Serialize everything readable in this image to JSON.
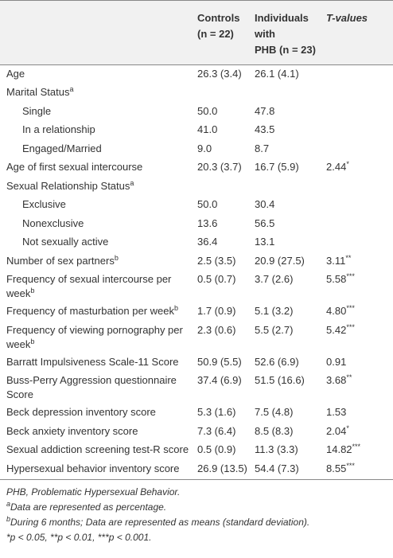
{
  "table": {
    "header": {
      "controls": [
        "Controls",
        "(n = 22)"
      ],
      "phb": [
        "Individuals with",
        "PHB (n = 23)"
      ],
      "t": "T-values"
    },
    "rows": [
      {
        "label": "Age",
        "controls": "26.3 (3.4)",
        "phb": "26.1 (4.1)"
      },
      {
        "label": "Marital Status",
        "label_sup": "a"
      },
      {
        "label": "Single",
        "indent": true,
        "controls": "50.0",
        "phb": "47.8"
      },
      {
        "label": "In a relationship",
        "indent": true,
        "controls": "41.0",
        "phb": "43.5"
      },
      {
        "label": "Engaged/Married",
        "indent": true,
        "controls": "9.0",
        "phb": "8.7"
      },
      {
        "label": "Age of first sexual intercourse",
        "controls": "20.3 (3.7)",
        "phb": "16.7 (5.9)",
        "t": "2.44",
        "t_sup": "*"
      },
      {
        "label": "Sexual Relationship Status",
        "label_sup": "a"
      },
      {
        "label": "Exclusive",
        "indent": true,
        "controls": "50.0",
        "phb": "30.4"
      },
      {
        "label": "Nonexclusive",
        "indent": true,
        "controls": "13.6",
        "phb": "56.5"
      },
      {
        "label": "Not sexually active",
        "indent": true,
        "controls": "36.4",
        "phb": "13.1"
      },
      {
        "label": "Number of sex partners",
        "label_sup": "b",
        "controls": "2.5 (3.5)",
        "phb": "20.9 (27.5)",
        "t": "3.11",
        "t_sup": "**"
      },
      {
        "label": "Frequency of sexual intercourse per week",
        "label_sup": "b",
        "controls": "0.5 (0.7)",
        "phb": "3.7 (2.6)",
        "t": "5.58",
        "t_sup": "***"
      },
      {
        "label": "Frequency of masturbation per week",
        "label_sup": "b",
        "controls": "1.7 (0.9)",
        "phb": "5.1 (3.2)",
        "t": "4.80",
        "t_sup": "***"
      },
      {
        "label": "Frequency of viewing pornography per week",
        "label_sup": "b",
        "controls": "2.3 (0.6)",
        "phb": "5.5 (2.7)",
        "t": "5.42",
        "t_sup": "***"
      },
      {
        "label": "Barratt Impulsiveness Scale-11 Score",
        "controls": "50.9 (5.5)",
        "phb": "52.6 (6.9)",
        "t": "0.91"
      },
      {
        "label": "Buss-Perry Aggression questionnaire Score",
        "controls": "37.4 (6.9)",
        "phb": "51.5 (16.6)",
        "t": "3.68",
        "t_sup": "**"
      },
      {
        "label": "Beck depression inventory score",
        "controls": "5.3 (1.6)",
        "phb": "7.5 (4.8)",
        "t": "1.53"
      },
      {
        "label": "Beck anxiety inventory score",
        "controls": "7.3 (6.4)",
        "phb": "8.5 (8.3)",
        "t": "2.04",
        "t_sup": "*"
      },
      {
        "label": "Sexual addiction screening test-R score",
        "controls": "0.5 (0.9)",
        "phb": "11.3 (3.3)",
        "t": "14.82",
        "t_sup": "***"
      },
      {
        "label": "Hypersexual behavior inventory score",
        "controls": "26.9 (13.5)",
        "phb": "54.4 (7.3)",
        "t": "8.55",
        "t_sup": "***"
      }
    ],
    "footnotes": [
      {
        "text": "PHB, Problematic Hypersexual Behavior."
      },
      {
        "sup": "a",
        "text": "Data are represented as percentage."
      },
      {
        "sup": "b",
        "text": "During 6 months; Data are represented as means (standard deviation)."
      },
      {
        "text": "*p < 0.05, **p < 0.01, ***p < 0.001."
      }
    ]
  }
}
